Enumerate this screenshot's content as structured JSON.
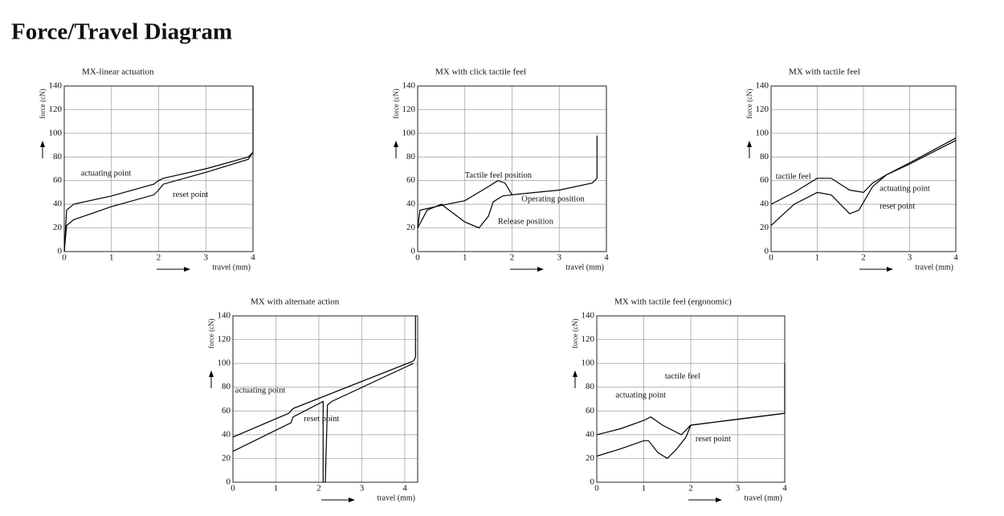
{
  "title": "Force/Travel Diagram",
  "chart_data": [
    {
      "type": "line",
      "title": "MX-linear actuation",
      "xlabel": "travel (mm)",
      "ylabel": "force (cN)",
      "xlim": [
        0,
        4
      ],
      "ylim": [
        0,
        140
      ],
      "xticks": [
        0,
        1,
        2,
        3,
        4
      ],
      "yticks": [
        0,
        20,
        40,
        60,
        80,
        100,
        120,
        140
      ],
      "grid": true,
      "series": [
        {
          "color": "#000000",
          "x": [
            0,
            0.05,
            0.2,
            1,
            1.9,
            2,
            2.1,
            3,
            3.9,
            4,
            4
          ],
          "values": [
            0,
            35,
            40,
            47,
            57,
            60,
            62,
            70,
            80,
            84,
            140
          ]
        },
        {
          "color": "#000000",
          "x": [
            0,
            0.05,
            0.2,
            1,
            1.9,
            2,
            2.1,
            3,
            3.9,
            4
          ],
          "values": [
            0,
            22,
            27,
            38,
            48,
            52,
            57,
            67,
            78,
            84
          ]
        }
      ],
      "annotations": [
        "actuating point",
        "reset point"
      ]
    },
    {
      "type": "line",
      "title": "MX with click tactile feel",
      "xlabel": "travel (mm)",
      "ylabel": "force (cN)",
      "xlim": [
        0,
        4
      ],
      "ylim": [
        0,
        140
      ],
      "xticks": [
        0,
        1,
        2,
        3,
        4
      ],
      "yticks": [
        0,
        20,
        40,
        60,
        80,
        100,
        120,
        140
      ],
      "grid": true,
      "series": [
        {
          "color": "#000000",
          "x": [
            0,
            0.05,
            0.5,
            1.0,
            1.5,
            1.7,
            1.85,
            2.0,
            2.5,
            3.0,
            3.7,
            3.8,
            3.8
          ],
          "values": [
            20,
            35,
            39,
            43,
            55,
            60,
            58,
            48,
            50,
            52,
            58,
            62,
            98
          ]
        },
        {
          "color": "#000000",
          "x": [
            0,
            0.2,
            0.5,
            1.0,
            1.3,
            1.5,
            1.6,
            1.8,
            2.0
          ],
          "values": [
            20,
            35,
            40,
            25,
            20,
            30,
            42,
            47,
            48
          ]
        }
      ],
      "annotations": [
        "Tactile feel position",
        "Operating position",
        "Release position"
      ]
    },
    {
      "type": "line",
      "title": "MX with tactile feel",
      "xlabel": "travel (mm)",
      "ylabel": "force (cN)",
      "xlim": [
        0,
        4
      ],
      "ylim": [
        0,
        140
      ],
      "xticks": [
        0,
        1,
        2,
        3,
        4
      ],
      "yticks": [
        0,
        20,
        40,
        60,
        80,
        100,
        120,
        140
      ],
      "grid": true,
      "series": [
        {
          "color": "#000000",
          "x": [
            0,
            0.5,
            1.0,
            1.3,
            1.7,
            2.0,
            2.2,
            2.5,
            3,
            4
          ],
          "values": [
            40,
            50,
            62,
            62,
            52,
            50,
            58,
            65,
            75,
            96
          ]
        },
        {
          "color": "#000000",
          "x": [
            0,
            0.5,
            1.0,
            1.3,
            1.7,
            1.9,
            2.2,
            2.5,
            3,
            4
          ],
          "values": [
            22,
            40,
            50,
            48,
            32,
            35,
            55,
            65,
            74,
            94
          ]
        }
      ],
      "annotations": [
        "tactile feel",
        "actuating point",
        "reset point"
      ]
    },
    {
      "type": "line",
      "title": "MX with alternate action",
      "xlabel": "travel (mm)",
      "ylabel": "force (cN)",
      "xlim": [
        0,
        4.3
      ],
      "ylim": [
        0,
        140
      ],
      "xticks": [
        0,
        1,
        2,
        3,
        4
      ],
      "yticks": [
        0,
        20,
        40,
        60,
        80,
        100,
        120,
        140
      ],
      "grid": true,
      "series": [
        {
          "color": "#000000",
          "x": [
            0,
            1.3,
            1.4,
            4.2,
            4.25,
            4.25
          ],
          "values": [
            38,
            58,
            62,
            102,
            105,
            140
          ]
        },
        {
          "color": "#000000",
          "x": [
            0,
            1.35,
            1.4,
            2.1,
            2.1
          ],
          "values": [
            26,
            50,
            55,
            68,
            0
          ]
        },
        {
          "color": "#000000",
          "x": [
            2.15,
            2.2,
            2.3,
            4.2
          ],
          "values": [
            0,
            65,
            68,
            100
          ]
        }
      ],
      "annotations": [
        "actuating point",
        "reset point"
      ]
    },
    {
      "type": "line",
      "title": "MX with tactile feel (ergonomic)",
      "xlabel": "travel (mm)",
      "ylabel": "force (cN)",
      "xlim": [
        0,
        4
      ],
      "ylim": [
        0,
        140
      ],
      "xticks": [
        0,
        1,
        2,
        3,
        4
      ],
      "yticks": [
        0,
        20,
        40,
        60,
        80,
        100,
        120,
        140
      ],
      "grid": true,
      "series": [
        {
          "color": "#000000",
          "x": [
            0,
            0.5,
            1.0,
            1.15,
            1.4,
            1.8,
            2.0,
            3.0,
            4.0,
            4.0
          ],
          "values": [
            40,
            45,
            52,
            55,
            48,
            40,
            48,
            53,
            58,
            100
          ]
        },
        {
          "color": "#000000",
          "x": [
            0,
            0.5,
            1.0,
            1.1,
            1.3,
            1.5,
            1.7,
            1.9,
            2.0,
            3.0,
            4.0
          ],
          "values": [
            22,
            28,
            35,
            35,
            25,
            20,
            28,
            38,
            48,
            53,
            58
          ]
        }
      ],
      "annotations": [
        "actuating point",
        "tactile feel",
        "reset point"
      ]
    }
  ]
}
